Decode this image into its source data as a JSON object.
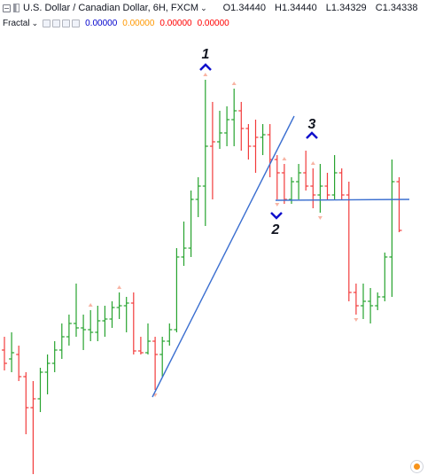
{
  "header": {
    "symbol_title": "U.S. Dollar / Canadian Dollar, 6H, FXCM",
    "ohlc": {
      "o": "O1.34440",
      "h": "H1.34440",
      "l": "L1.34329",
      "c": "C1.34338"
    },
    "indicator": {
      "name": "Fractal",
      "values": [
        "0.00000",
        "0.00000",
        "0.00000",
        "0.00000"
      ],
      "value_colors": [
        "#0000cc",
        "#ff9800",
        "#ff0000",
        "#ff0000"
      ]
    }
  },
  "annotations": [
    {
      "label": "1"
    },
    {
      "label": "2"
    },
    {
      "label": "3"
    }
  ],
  "colors": {
    "up_bar": "#26a32e",
    "down_bar": "#f23b3b",
    "trendline": "#3b6fd0",
    "fractal_marker": "#f8b4a4",
    "pattern_marker": "#1010cc"
  },
  "chart_data": {
    "type": "ohlc",
    "y_scale": "price",
    "grid": false,
    "legend": "none",
    "bars": [
      {
        "c": "d",
        "o": 395,
        "h": 380,
        "l": 418,
        "c_": 410
      },
      {
        "c": "u",
        "o": 405,
        "h": 375,
        "l": 420,
        "c_": 398
      },
      {
        "c": "d",
        "o": 400,
        "h": 390,
        "l": 430,
        "c_": 425
      },
      {
        "c": "d",
        "o": 425,
        "h": 420,
        "l": 490,
        "c_": 460
      },
      {
        "c": "d",
        "o": 460,
        "h": 430,
        "l": 535,
        "c_": 450
      },
      {
        "c": "u",
        "o": 450,
        "h": 415,
        "l": 465,
        "c_": 420
      },
      {
        "c": "u",
        "o": 420,
        "h": 400,
        "l": 445,
        "c_": 410
      },
      {
        "c": "u",
        "o": 410,
        "h": 385,
        "l": 420,
        "c_": 395
      },
      {
        "c": "u",
        "o": 395,
        "h": 365,
        "l": 405,
        "c_": 380
      },
      {
        "c": "u",
        "o": 380,
        "h": 355,
        "l": 390,
        "c_": 365
      },
      {
        "c": "u",
        "o": 365,
        "h": 320,
        "l": 380,
        "c_": 370
      },
      {
        "c": "u",
        "o": 370,
        "h": 355,
        "l": 395,
        "c_": 372
      },
      {
        "c": "u",
        "o": 372,
        "h": 350,
        "l": 385,
        "c_": 375
      },
      {
        "c": "u",
        "o": 375,
        "h": 345,
        "l": 385,
        "c_": 362
      },
      {
        "c": "u",
        "o": 362,
        "h": 345,
        "l": 380,
        "c_": 360
      },
      {
        "c": "u",
        "o": 360,
        "h": 340,
        "l": 370,
        "c_": 347
      },
      {
        "c": "u",
        "o": 347,
        "h": 330,
        "l": 360,
        "c_": 345
      },
      {
        "c": "u",
        "o": 345,
        "h": 335,
        "l": 375,
        "c_": 342
      },
      {
        "c": "d",
        "o": 342,
        "h": 330,
        "l": 400,
        "c_": 396
      },
      {
        "c": "d",
        "o": 396,
        "h": 380,
        "l": 400,
        "c_": 398
      },
      {
        "c": "u",
        "o": 398,
        "h": 365,
        "l": 400,
        "c_": 385
      },
      {
        "c": "d",
        "o": 385,
        "h": 380,
        "l": 440,
        "c_": 400
      },
      {
        "c": "u",
        "o": 400,
        "h": 380,
        "l": 425,
        "c_": 385
      },
      {
        "c": "u",
        "o": 385,
        "h": 365,
        "l": 390,
        "c_": 372
      },
      {
        "c": "u",
        "o": 372,
        "h": 280,
        "l": 375,
        "c_": 290
      },
      {
        "c": "u",
        "o": 290,
        "h": 250,
        "l": 300,
        "c_": 280
      },
      {
        "c": "u",
        "o": 280,
        "h": 215,
        "l": 290,
        "c_": 225
      },
      {
        "c": "u",
        "o": 225,
        "h": 200,
        "l": 245,
        "c_": 210
      },
      {
        "c": "u",
        "o": 210,
        "h": 90,
        "l": 255,
        "c_": 165
      },
      {
        "c": "d",
        "o": 165,
        "h": 115,
        "l": 225,
        "c_": 160
      },
      {
        "c": "u",
        "o": 160,
        "h": 125,
        "l": 168,
        "c_": 150
      },
      {
        "c": "u",
        "o": 150,
        "h": 120,
        "l": 165,
        "c_": 135
      },
      {
        "c": "u",
        "o": 135,
        "h": 100,
        "l": 165,
        "c_": 125
      },
      {
        "c": "d",
        "o": 125,
        "h": 115,
        "l": 170,
        "c_": 145
      },
      {
        "c": "d",
        "o": 145,
        "h": 140,
        "l": 180,
        "c_": 165
      },
      {
        "c": "d",
        "o": 165,
        "h": 135,
        "l": 195,
        "c_": 155
      },
      {
        "c": "u",
        "o": 155,
        "h": 140,
        "l": 175,
        "c_": 152
      },
      {
        "c": "d",
        "o": 152,
        "h": 140,
        "l": 200,
        "c_": 180
      },
      {
        "c": "d",
        "o": 180,
        "h": 175,
        "l": 225,
        "c_": 195
      },
      {
        "c": "d",
        "o": 195,
        "h": 185,
        "l": 230,
        "c_": 225
      },
      {
        "c": "u",
        "o": 225,
        "h": 200,
        "l": 230,
        "c_": 205
      },
      {
        "c": "u",
        "o": 205,
        "h": 185,
        "l": 225,
        "c_": 195
      },
      {
        "c": "d",
        "o": 195,
        "h": 170,
        "l": 215,
        "c_": 210
      },
      {
        "c": "d",
        "o": 210,
        "h": 190,
        "l": 235,
        "c_": 220
      },
      {
        "c": "u",
        "o": 220,
        "h": 185,
        "l": 240,
        "c_": 210
      },
      {
        "c": "d",
        "o": 210,
        "h": 195,
        "l": 225,
        "c_": 220
      },
      {
        "c": "u",
        "o": 220,
        "h": 175,
        "l": 225,
        "c_": 195
      },
      {
        "c": "d",
        "o": 195,
        "h": 190,
        "l": 225,
        "c_": 220
      },
      {
        "c": "d",
        "o": 220,
        "h": 205,
        "l": 340,
        "c_": 330
      },
      {
        "c": "d",
        "o": 330,
        "h": 320,
        "l": 355,
        "c_": 345
      },
      {
        "c": "u",
        "o": 345,
        "h": 320,
        "l": 360,
        "c_": 340
      },
      {
        "c": "u",
        "o": 340,
        "h": 325,
        "l": 365,
        "c_": 345
      },
      {
        "c": "u",
        "o": 345,
        "h": 330,
        "l": 350,
        "c_": 335
      },
      {
        "c": "u",
        "o": 335,
        "h": 285,
        "l": 340,
        "c_": 290
      },
      {
        "c": "u",
        "o": 290,
        "h": 180,
        "l": 335,
        "c_": 205
      },
      {
        "c": "d",
        "o": 205,
        "h": 200,
        "l": 262,
        "c_": 260
      }
    ],
    "fractal_markers": [
      {
        "bar": 4,
        "at": "low"
      },
      {
        "bar": 12,
        "at": "high"
      },
      {
        "bar": 16,
        "at": "high"
      },
      {
        "bar": 21,
        "at": "low"
      },
      {
        "bar": 28,
        "at": "high"
      },
      {
        "bar": 32,
        "at": "high"
      },
      {
        "bar": 39,
        "at": "high"
      },
      {
        "bar": 38,
        "at": "low"
      },
      {
        "bar": 43,
        "at": "high"
      },
      {
        "bar": 44,
        "at": "low"
      },
      {
        "bar": 49,
        "at": "low"
      }
    ]
  }
}
